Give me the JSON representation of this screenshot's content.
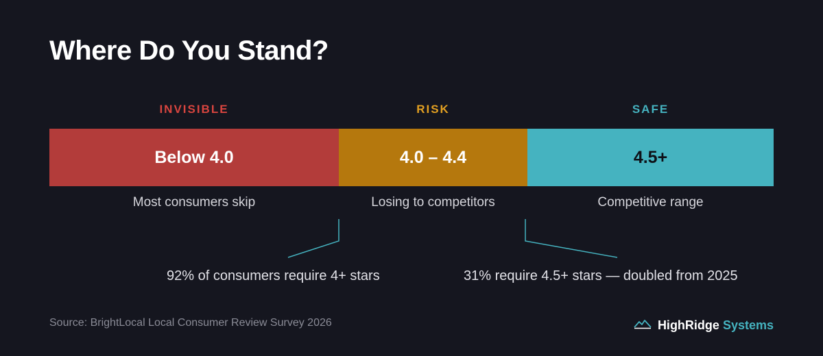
{
  "title": "Where Do You Stand?",
  "zones": [
    {
      "label": "INVISIBLE",
      "range": "Below 4.0",
      "description": "Most consumers skip",
      "color": "#b33c3a",
      "label_color": "#d9453f",
      "text_color": "#ffffff"
    },
    {
      "label": "RISK",
      "range": "4.0 – 4.4",
      "description": "Losing to competitors",
      "color": "#b5780d",
      "label_color": "#e3a021",
      "text_color": "#ffffff"
    },
    {
      "label": "SAFE",
      "range": "4.5+",
      "description": "Competitive range",
      "color": "#45b3c0",
      "label_color": "#45b3c0",
      "text_color": "#0e1118"
    }
  ],
  "notes": {
    "left": "92% of consumers require 4+ stars",
    "right": "31% require 4.5+ stars — doubled from 2025"
  },
  "source": "Source: BrightLocal Local Consumer Review Survey 2026",
  "brand": {
    "name_primary": "HighRidge",
    "name_secondary": "Systems",
    "icon": "mountain-logo-icon"
  },
  "colors": {
    "background": "#15161f",
    "accent": "#45b3c0"
  }
}
